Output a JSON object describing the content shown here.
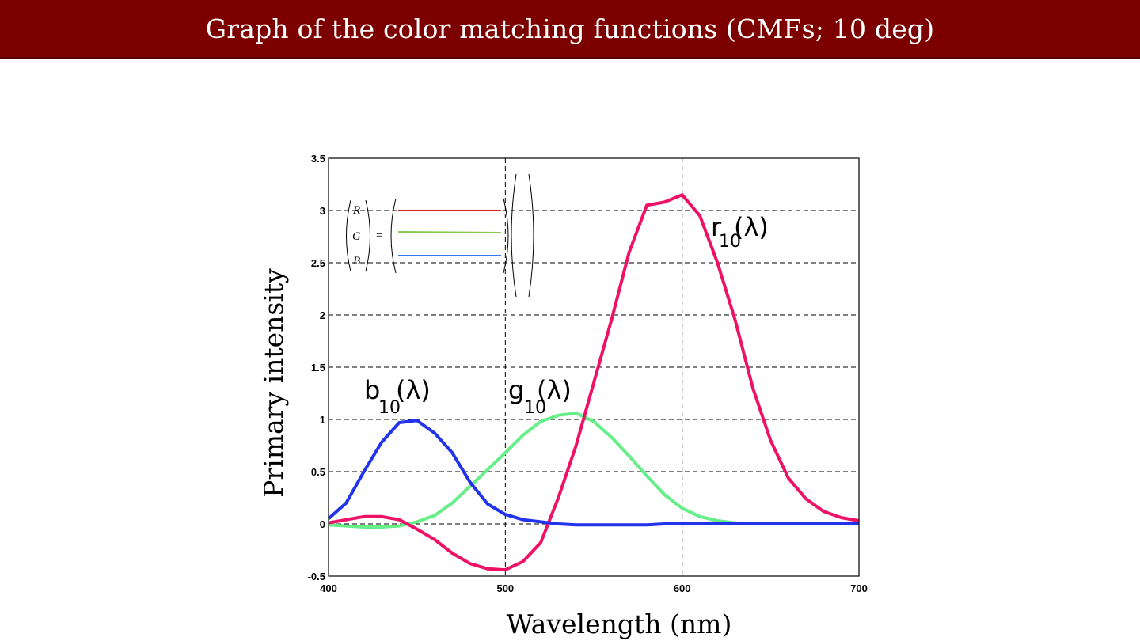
{
  "slide": {
    "title": "Graph of the color matching functions (CMFs; 10 deg)"
  },
  "colors": {
    "title_bar": "#7d0000",
    "r_curve": "#ee1166",
    "g_curve": "#66ee88",
    "b_curve": "#2233ee",
    "legend_r": "#dd2222",
    "legend_g": "#88cc55",
    "legend_b": "#3377ee"
  },
  "legend": {
    "lhs": [
      "R",
      "G",
      "B"
    ],
    "equals": "="
  },
  "chart_data": {
    "type": "line",
    "xlabel": "Wavelength (nm)",
    "ylabel": "Primary intensity",
    "xlim": [
      400,
      700
    ],
    "ylim": [
      -0.5,
      3.5
    ],
    "xticks": [
      400,
      500,
      600,
      700
    ],
    "yticks": [
      -0.5,
      0,
      0.5,
      1,
      1.5,
      2,
      2.5,
      3,
      3.5
    ],
    "ytick_labels": [
      "-0.5",
      "0",
      "0.5",
      "1",
      "1.5",
      "2",
      "2.5",
      "3",
      "3.5"
    ],
    "grid": true,
    "x": [
      400,
      410,
      420,
      430,
      440,
      450,
      460,
      470,
      480,
      490,
      500,
      510,
      520,
      530,
      540,
      550,
      560,
      570,
      580,
      590,
      600,
      610,
      620,
      630,
      640,
      650,
      660,
      670,
      680,
      690,
      700
    ],
    "series": [
      {
        "label_main": "r",
        "label_sub": "10",
        "label_suffix": "(λ)",
        "values": [
          0.01,
          0.04,
          0.07,
          0.07,
          0.04,
          -0.05,
          -0.15,
          -0.28,
          -0.38,
          -0.43,
          -0.44,
          -0.36,
          -0.18,
          0.25,
          0.75,
          1.35,
          1.95,
          2.6,
          3.05,
          3.08,
          3.15,
          2.95,
          2.5,
          1.95,
          1.3,
          0.8,
          0.44,
          0.24,
          0.12,
          0.06,
          0.03
        ]
      },
      {
        "label_main": "g",
        "label_sub": "10",
        "label_suffix": "(λ)",
        "values": [
          -0.01,
          -0.02,
          -0.03,
          -0.03,
          -0.02,
          0.02,
          0.08,
          0.2,
          0.36,
          0.52,
          0.68,
          0.85,
          0.98,
          1.04,
          1.06,
          0.98,
          0.83,
          0.65,
          0.46,
          0.28,
          0.15,
          0.07,
          0.03,
          0.01,
          0.0,
          0.0,
          0.0,
          0.0,
          0.0,
          0.0,
          0.0
        ]
      },
      {
        "label_main": "b",
        "label_sub": "10",
        "label_suffix": "(λ)",
        "values": [
          0.05,
          0.2,
          0.5,
          0.78,
          0.97,
          0.99,
          0.87,
          0.68,
          0.4,
          0.19,
          0.09,
          0.04,
          0.02,
          0.0,
          -0.01,
          -0.01,
          -0.01,
          -0.01,
          -0.01,
          0.0,
          0.0,
          0.0,
          0.0,
          0.0,
          0.0,
          0.0,
          0.0,
          0.0,
          0.0,
          0.0,
          0.0
        ]
      }
    ]
  }
}
